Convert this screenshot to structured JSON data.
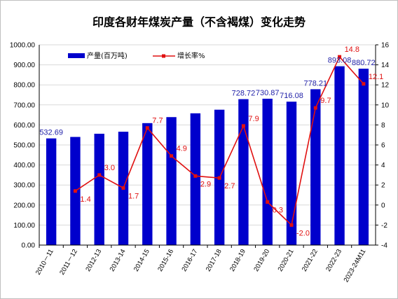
{
  "chart_data": {
    "type": "bar",
    "title": "印度各财年煤炭产量（不含褐煤）变化走势",
    "categories": [
      "2010－11",
      "2011－12",
      "2012-13",
      "2013-14",
      "2014-15",
      "2015-16",
      "2016-17",
      "2017-18",
      "2018-19",
      "2019-20",
      "2020-21",
      "2021-22",
      "2022-23",
      "2023-24M11"
    ],
    "series": [
      {
        "name": "产量(百万吨)",
        "type": "bar",
        "axis": "left",
        "color": "#0000cc",
        "values": [
          532.69,
          540,
          556,
          566,
          609,
          639,
          658,
          676,
          728.72,
          730.87,
          716.08,
          778.21,
          893.08,
          880.72
        ],
        "labels": [
          "532.69",
          "",
          "",
          "",
          "",
          "",
          "",
          "",
          "728.72",
          "730.87",
          "716.08",
          "778.21",
          "893.08",
          "880.72"
        ]
      },
      {
        "name": "增长率%",
        "type": "line",
        "axis": "right",
        "color": "#e01010",
        "values": [
          null,
          1.4,
          3.0,
          1.7,
          7.7,
          4.9,
          2.9,
          2.7,
          7.9,
          0.3,
          -2.0,
          9.7,
          14.8,
          12.1
        ],
        "labels": [
          "",
          "1.4",
          "3.0",
          "1.7",
          "7.7",
          "4.9",
          "2.9",
          "2.7",
          "7.9",
          "0.3",
          "-2.0",
          "9.7",
          "14.8",
          "12.1"
        ]
      }
    ],
    "y_left": {
      "min": 0,
      "max": 1000,
      "step": 100,
      "ticks": [
        "0.00",
        "100.00",
        "200.00",
        "300.00",
        "400.00",
        "500.00",
        "600.00",
        "700.00",
        "800.00",
        "900.00",
        "1000.00"
      ]
    },
    "y_right": {
      "min": -4,
      "max": 16,
      "step": 2,
      "ticks": [
        "-4",
        "-2",
        "0",
        "2",
        "4",
        "6",
        "8",
        "10",
        "12",
        "14",
        "16"
      ]
    },
    "grid": true,
    "legend_position": "top-left"
  }
}
